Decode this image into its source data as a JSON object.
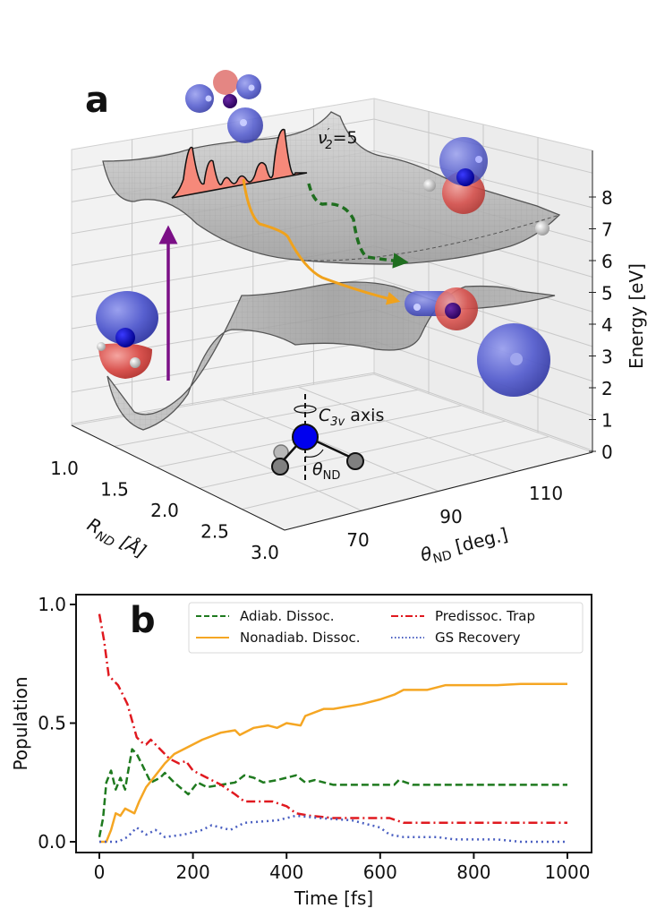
{
  "panel_a": {
    "letter": "a",
    "vibrational_label_main": "ν",
    "vibrational_label_sub": "2",
    "vibrational_label_value": "=5",
    "c3v_label_main": "C",
    "c3v_label_sub": "3v",
    "c3v_label_suffix": " axis",
    "theta_label_main": "θ",
    "theta_label_sub": "ND",
    "axes": {
      "x_title_main": "R",
      "x_title_sub": "ND",
      "x_title_unit": " [Å]",
      "x_ticks": [
        "1.0",
        "1.5",
        "2.0",
        "2.5",
        "3.0"
      ],
      "y_title_main": "θ",
      "y_title_sub": "ND",
      "y_title_unit": " [deg.]",
      "y_ticks": [
        "70",
        "90",
        "110"
      ],
      "z_title": "Energy [eV]",
      "z_ticks": [
        "0",
        "1",
        "2",
        "3",
        "4",
        "5",
        "6",
        "7",
        "8"
      ]
    },
    "colors": {
      "surface": "#bdbdbd",
      "excitation_arrow": "#7b0f86",
      "nonadiabatic_path": "#f0a21c",
      "adiabatic_path": "#1f6e1f",
      "wavepacket": "#f6897a",
      "orbital_positive": "#5860cf",
      "orbital_negative": "#d9534f",
      "nitrogen": "#0000e0"
    }
  },
  "chart_data": {
    "type": "line",
    "panel_letter": "b",
    "title": "",
    "xlabel": "Time [fs]",
    "ylabel": "Population",
    "xlim": [
      -50,
      1050
    ],
    "ylim": [
      -0.05,
      1.0
    ],
    "x_ticks": [
      0,
      200,
      400,
      600,
      800,
      1000
    ],
    "x_tick_labels": [
      "0",
      "200",
      "400",
      "600",
      "800",
      "1000"
    ],
    "y_ticks": [
      0.0,
      0.5,
      1.0
    ],
    "y_tick_labels": [
      "0.0",
      "0.5",
      "1.0"
    ],
    "grid": false,
    "legend_placement": "top-right",
    "legend_columns": 2,
    "series": [
      {
        "name": "Adiab. Dissoc.",
        "color": "#1f7a1f",
        "style": "dashed",
        "x": [
          0,
          8,
          15,
          25,
          35,
          45,
          55,
          60,
          70,
          80,
          90,
          110,
          130,
          140,
          160,
          190,
          210,
          230,
          260,
          290,
          310,
          330,
          350,
          380,
          420,
          440,
          460,
          500,
          630,
          640,
          670,
          800,
          850,
          1000
        ],
        "y": [
          0.02,
          0.1,
          0.25,
          0.3,
          0.22,
          0.27,
          0.22,
          0.28,
          0.39,
          0.37,
          0.33,
          0.25,
          0.27,
          0.29,
          0.25,
          0.2,
          0.25,
          0.23,
          0.24,
          0.25,
          0.28,
          0.27,
          0.25,
          0.26,
          0.28,
          0.25,
          0.26,
          0.24,
          0.24,
          0.26,
          0.24,
          0.24,
          0.24,
          0.24
        ]
      },
      {
        "name": "Nonadiab. Dissoc.",
        "color": "#f5a623",
        "style": "solid",
        "x": [
          0,
          15,
          25,
          35,
          45,
          55,
          75,
          85,
          100,
          120,
          140,
          160,
          200,
          220,
          260,
          290,
          300,
          330,
          360,
          380,
          400,
          430,
          440,
          480,
          500,
          560,
          600,
          630,
          650,
          700,
          740,
          800,
          850,
          900,
          1000
        ],
        "y": [
          0.0,
          0.0,
          0.05,
          0.12,
          0.11,
          0.14,
          0.12,
          0.17,
          0.23,
          0.28,
          0.33,
          0.37,
          0.41,
          0.43,
          0.46,
          0.47,
          0.45,
          0.48,
          0.49,
          0.48,
          0.5,
          0.49,
          0.53,
          0.56,
          0.56,
          0.58,
          0.6,
          0.62,
          0.64,
          0.64,
          0.66,
          0.66,
          0.66,
          0.665,
          0.665
        ]
      },
      {
        "name": "Predissoc. Trap",
        "color": "#e0191f",
        "style": "dashdot",
        "x": [
          0,
          10,
          20,
          40,
          55,
          60,
          80,
          90,
          100,
          110,
          125,
          150,
          170,
          185,
          200,
          230,
          260,
          290,
          310,
          370,
          400,
          420,
          450,
          500,
          620,
          650,
          1000
        ],
        "y": [
          0.96,
          0.85,
          0.7,
          0.66,
          0.6,
          0.58,
          0.44,
          0.42,
          0.41,
          0.43,
          0.4,
          0.35,
          0.33,
          0.34,
          0.3,
          0.27,
          0.24,
          0.2,
          0.17,
          0.17,
          0.15,
          0.12,
          0.11,
          0.1,
          0.1,
          0.08,
          0.08
        ]
      },
      {
        "name": "GS Recovery",
        "color": "#4a5fc1",
        "style": "dotted",
        "x": [
          0,
          40,
          60,
          80,
          100,
          120,
          140,
          180,
          220,
          240,
          280,
          310,
          380,
          420,
          470,
          540,
          600,
          620,
          650,
          720,
          760,
          850,
          900,
          1000
        ],
        "y": [
          0.0,
          0.0,
          0.02,
          0.06,
          0.03,
          0.05,
          0.02,
          0.03,
          0.05,
          0.07,
          0.05,
          0.08,
          0.09,
          0.11,
          0.1,
          0.09,
          0.06,
          0.03,
          0.02,
          0.02,
          0.01,
          0.01,
          0.0,
          0.0
        ]
      }
    ]
  }
}
